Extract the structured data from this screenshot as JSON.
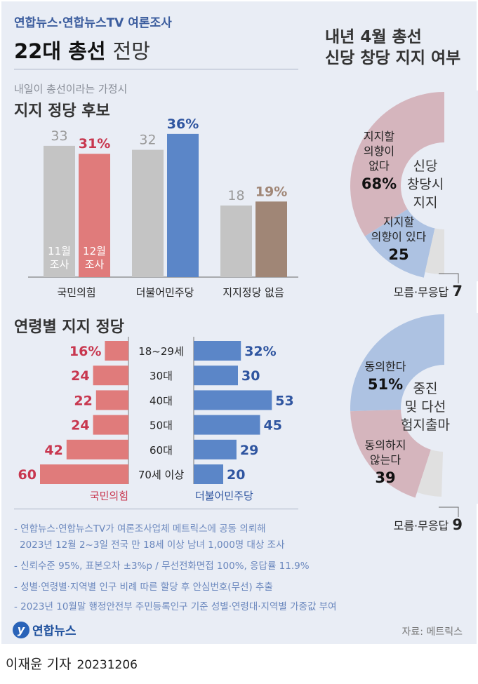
{
  "header": {
    "kicker": "연합뉴스·연합뉴스TV 여론조사",
    "title_bold": "22대 총선",
    "title_light": "전망"
  },
  "colors": {
    "background": "#e9edf5",
    "nov_bar": "#c4c4c4",
    "ppp": "#e07b7b",
    "ppp_text": "#c8374f",
    "dp": "#5b86c8",
    "dp_text": "#2f55a0",
    "none": "#a08676",
    "none_text": "#a08676",
    "pie_red": "#d5b5bd",
    "pie_blue": "#adc2e2",
    "pie_gray": "#e0e0e0"
  },
  "chart_data": [
    {
      "type": "bar",
      "subtitle": "내일이 총선이라는 가정시",
      "title": "지지 정당 후보",
      "categories": [
        "국민의힘",
        "더불어민주당",
        "지지정당 없음"
      ],
      "series": [
        {
          "name": "11월 조사",
          "values": [
            33,
            32,
            18
          ],
          "labels": [
            "33",
            "32",
            "18"
          ]
        },
        {
          "name": "12월 조사",
          "values": [
            31,
            36,
            19
          ],
          "labels": [
            "31%",
            "36%",
            "19%"
          ]
        }
      ],
      "series_legend": [
        [
          "11월",
          "조사"
        ],
        [
          "12월",
          "조사"
        ]
      ],
      "ylim": [
        0,
        36
      ]
    },
    {
      "type": "bar",
      "orientation": "horizontal-butterfly",
      "title": "연령별 지지 정당",
      "categories": [
        "18~29세",
        "30대",
        "40대",
        "50대",
        "60대",
        "70세 이상"
      ],
      "series": [
        {
          "name": "국민의힘",
          "values": [
            16,
            24,
            22,
            24,
            42,
            60
          ],
          "labels": [
            "16%",
            "24",
            "22",
            "24",
            "42",
            "60"
          ]
        },
        {
          "name": "더불어민주당",
          "values": [
            32,
            30,
            53,
            45,
            29,
            20
          ],
          "labels": [
            "32%",
            "30",
            "53",
            "45",
            "29",
            "20"
          ]
        }
      ]
    },
    {
      "type": "pie",
      "style": "half-donut",
      "title": "내년 4월 총선 신당 창당 지지 여부",
      "title_lines": [
        "내년 4월 총선",
        "신당 창당 지지 여부"
      ],
      "center_label": [
        "신당",
        "창당시",
        "지지"
      ],
      "slices": [
        {
          "label": "지지할 의향이 없다",
          "label_lines": [
            "지지할",
            "의향이",
            "없다"
          ],
          "value": 68,
          "value_label": "68%"
        },
        {
          "label": "지지할 의향이 있다",
          "label_lines": [
            "지지할",
            "의향이 있다"
          ],
          "value": 25,
          "value_label": "25"
        },
        {
          "label": "모름·무응답",
          "label_lines": [
            "모름·무응답"
          ],
          "value": 7,
          "value_label": "7"
        }
      ]
    },
    {
      "type": "pie",
      "style": "half-donut",
      "center_label": [
        "중진",
        "및 다선",
        "험지출마"
      ],
      "slices": [
        {
          "label": "동의한다",
          "label_lines": [
            "동의한다"
          ],
          "value": 51,
          "value_label": "51%"
        },
        {
          "label": "동의하지 않는다",
          "label_lines": [
            "동의하지",
            "않는다"
          ],
          "value": 39,
          "value_label": "39"
        },
        {
          "label": "모름·무응답",
          "label_lines": [
            "모름·무응답"
          ],
          "value": 9,
          "value_label": "9"
        }
      ]
    }
  ],
  "notes": [
    "- 연합뉴스·연합뉴스TV가 여론조사업체 메트릭스에 공동 의뢰해",
    "  2023년 12월 2~3일 전국 만 18세 이상 남녀 1,000명 대상 조사",
    "- 신뢰수준 95%, 표본오차 ±3%p / 무선전화면접 100%, 응답률 11.9%",
    "- 성별·연령별·지역별 인구 비례 따른 할당 후 안심번호(무선) 추출",
    "- 2023년 10월말 행정안전부 주민등록인구 기준 성별·연령대·지역별 가중값 부여"
  ],
  "footer": {
    "logo": "연합뉴스",
    "source": "자료: 메트릭스",
    "byline": "이재윤 기자",
    "date": "20231206"
  }
}
